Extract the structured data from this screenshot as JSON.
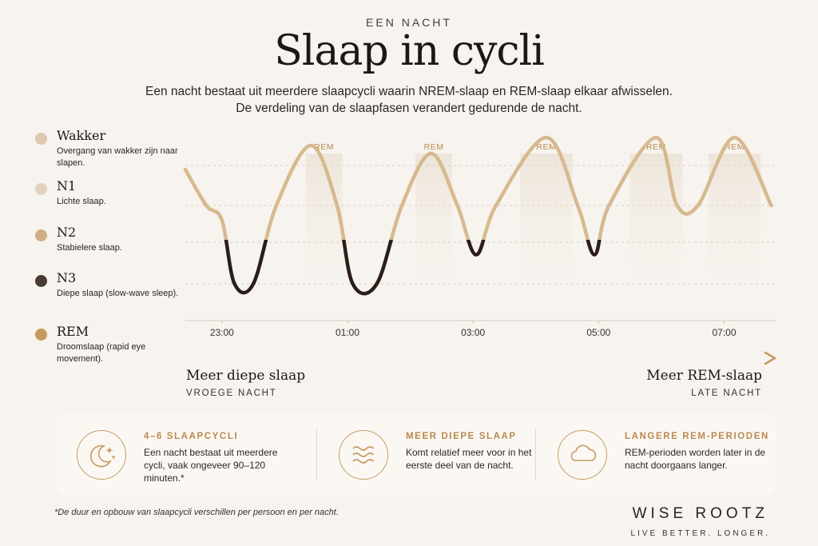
{
  "header": {
    "eyebrow": "EEN NACHT",
    "title": "Slaap in cycli",
    "subtitle": "Een nacht bestaat uit meerdere slaapcycli waarin NREM-slaap en REM-slaap elkaar afwisselen. De verdeling van de slaapfasen verandert gedurende de nacht."
  },
  "legend": [
    {
      "name": "Wakker",
      "desc": "Overgang van wakker zijn naar slapen.",
      "color": "#ddc9ad"
    },
    {
      "name": "N1",
      "desc": "Lichte slaap.",
      "color": "#e3d3bd"
    },
    {
      "name": "N2",
      "desc": "Stabielere slaap.",
      "color": "#d0ad84"
    },
    {
      "name": "N3",
      "desc": "Diepe slaap (slow-wave sleep).",
      "color": "#4a3a35"
    },
    {
      "name": "REM",
      "desc": "Droomslaap (rapid eye movement).",
      "color": "#c69a5f"
    }
  ],
  "chart_data": {
    "type": "line",
    "x_unit": "time of night",
    "x_ticks": [
      "23:00",
      "01:00",
      "03:00",
      "05:00",
      "07:00"
    ],
    "x_range": [
      "22:25",
      "07:50"
    ],
    "levels": [
      "Wakker",
      "N1",
      "N2",
      "N3"
    ],
    "stage_labels": [
      "REM",
      "REM",
      "REM",
      "REM",
      "REM"
    ],
    "rem_periods": [
      {
        "start": "00:20",
        "end": "00:55"
      },
      {
        "start": "02:05",
        "end": "02:40"
      },
      {
        "start": "03:45",
        "end": "04:35"
      },
      {
        "start": "05:30",
        "end": "06:20"
      },
      {
        "start": "06:45",
        "end": "07:35"
      }
    ],
    "hypnogram": [
      [
        "22:25",
        0.1
      ],
      [
        "22:45",
        1.0
      ],
      [
        "23:00",
        1.4
      ],
      [
        "23:12",
        3.0
      ],
      [
        "23:30",
        3.0
      ],
      [
        "23:52",
        1.0
      ],
      [
        "00:25",
        -0.5
      ],
      [
        "00:50",
        1.0
      ],
      [
        "01:05",
        3.0
      ],
      [
        "01:28",
        3.0
      ],
      [
        "01:52",
        1.0
      ],
      [
        "02:20",
        -0.3
      ],
      [
        "02:45",
        1.0
      ],
      [
        "03:03",
        2.3
      ],
      [
        "03:22",
        1.0
      ],
      [
        "04:10",
        -0.7
      ],
      [
        "04:40",
        1.0
      ],
      [
        "04:56",
        2.3
      ],
      [
        "05:10",
        1.0
      ],
      [
        "05:55",
        -0.7
      ],
      [
        "06:15",
        1.0
      ],
      [
        "06:35",
        1.0
      ],
      [
        "07:10",
        -0.7
      ],
      [
        "07:45",
        1.0
      ]
    ],
    "grid": true
  },
  "arrow": {
    "left_title": "Meer diepe slaap",
    "left_sub": "VROEGE NACHT",
    "right_title": "Meer REM-slaap",
    "right_sub": "LATE NACHT"
  },
  "cards": [
    {
      "title": "4–6 SLAAPCYCLI",
      "text": "Een nacht bestaat uit meerdere cycli, vaak ongeveer 90–120 minuten.*",
      "icon": "moon-stars-icon"
    },
    {
      "title": "MEER DIEPE SLAAP",
      "text": "Komt relatief meer voor in het eerste deel van de nacht.",
      "icon": "waves-icon"
    },
    {
      "title": "LANGERE REM-PERIODEN",
      "text": "REM-perioden worden later in de nacht doorgaans langer.",
      "icon": "cloud-icon"
    }
  ],
  "footnote": "*De duur en opbouw van slaapcycli verschillen per persoon en per nacht.",
  "brand": {
    "name": "WISE ROOTZ",
    "tagline": "LIVE BETTER. LONGER."
  },
  "colors": {
    "background": "#f7f3ee",
    "light": "#ddc9ad",
    "rem": "#c69a5f",
    "deep": "#2b1d1a"
  }
}
